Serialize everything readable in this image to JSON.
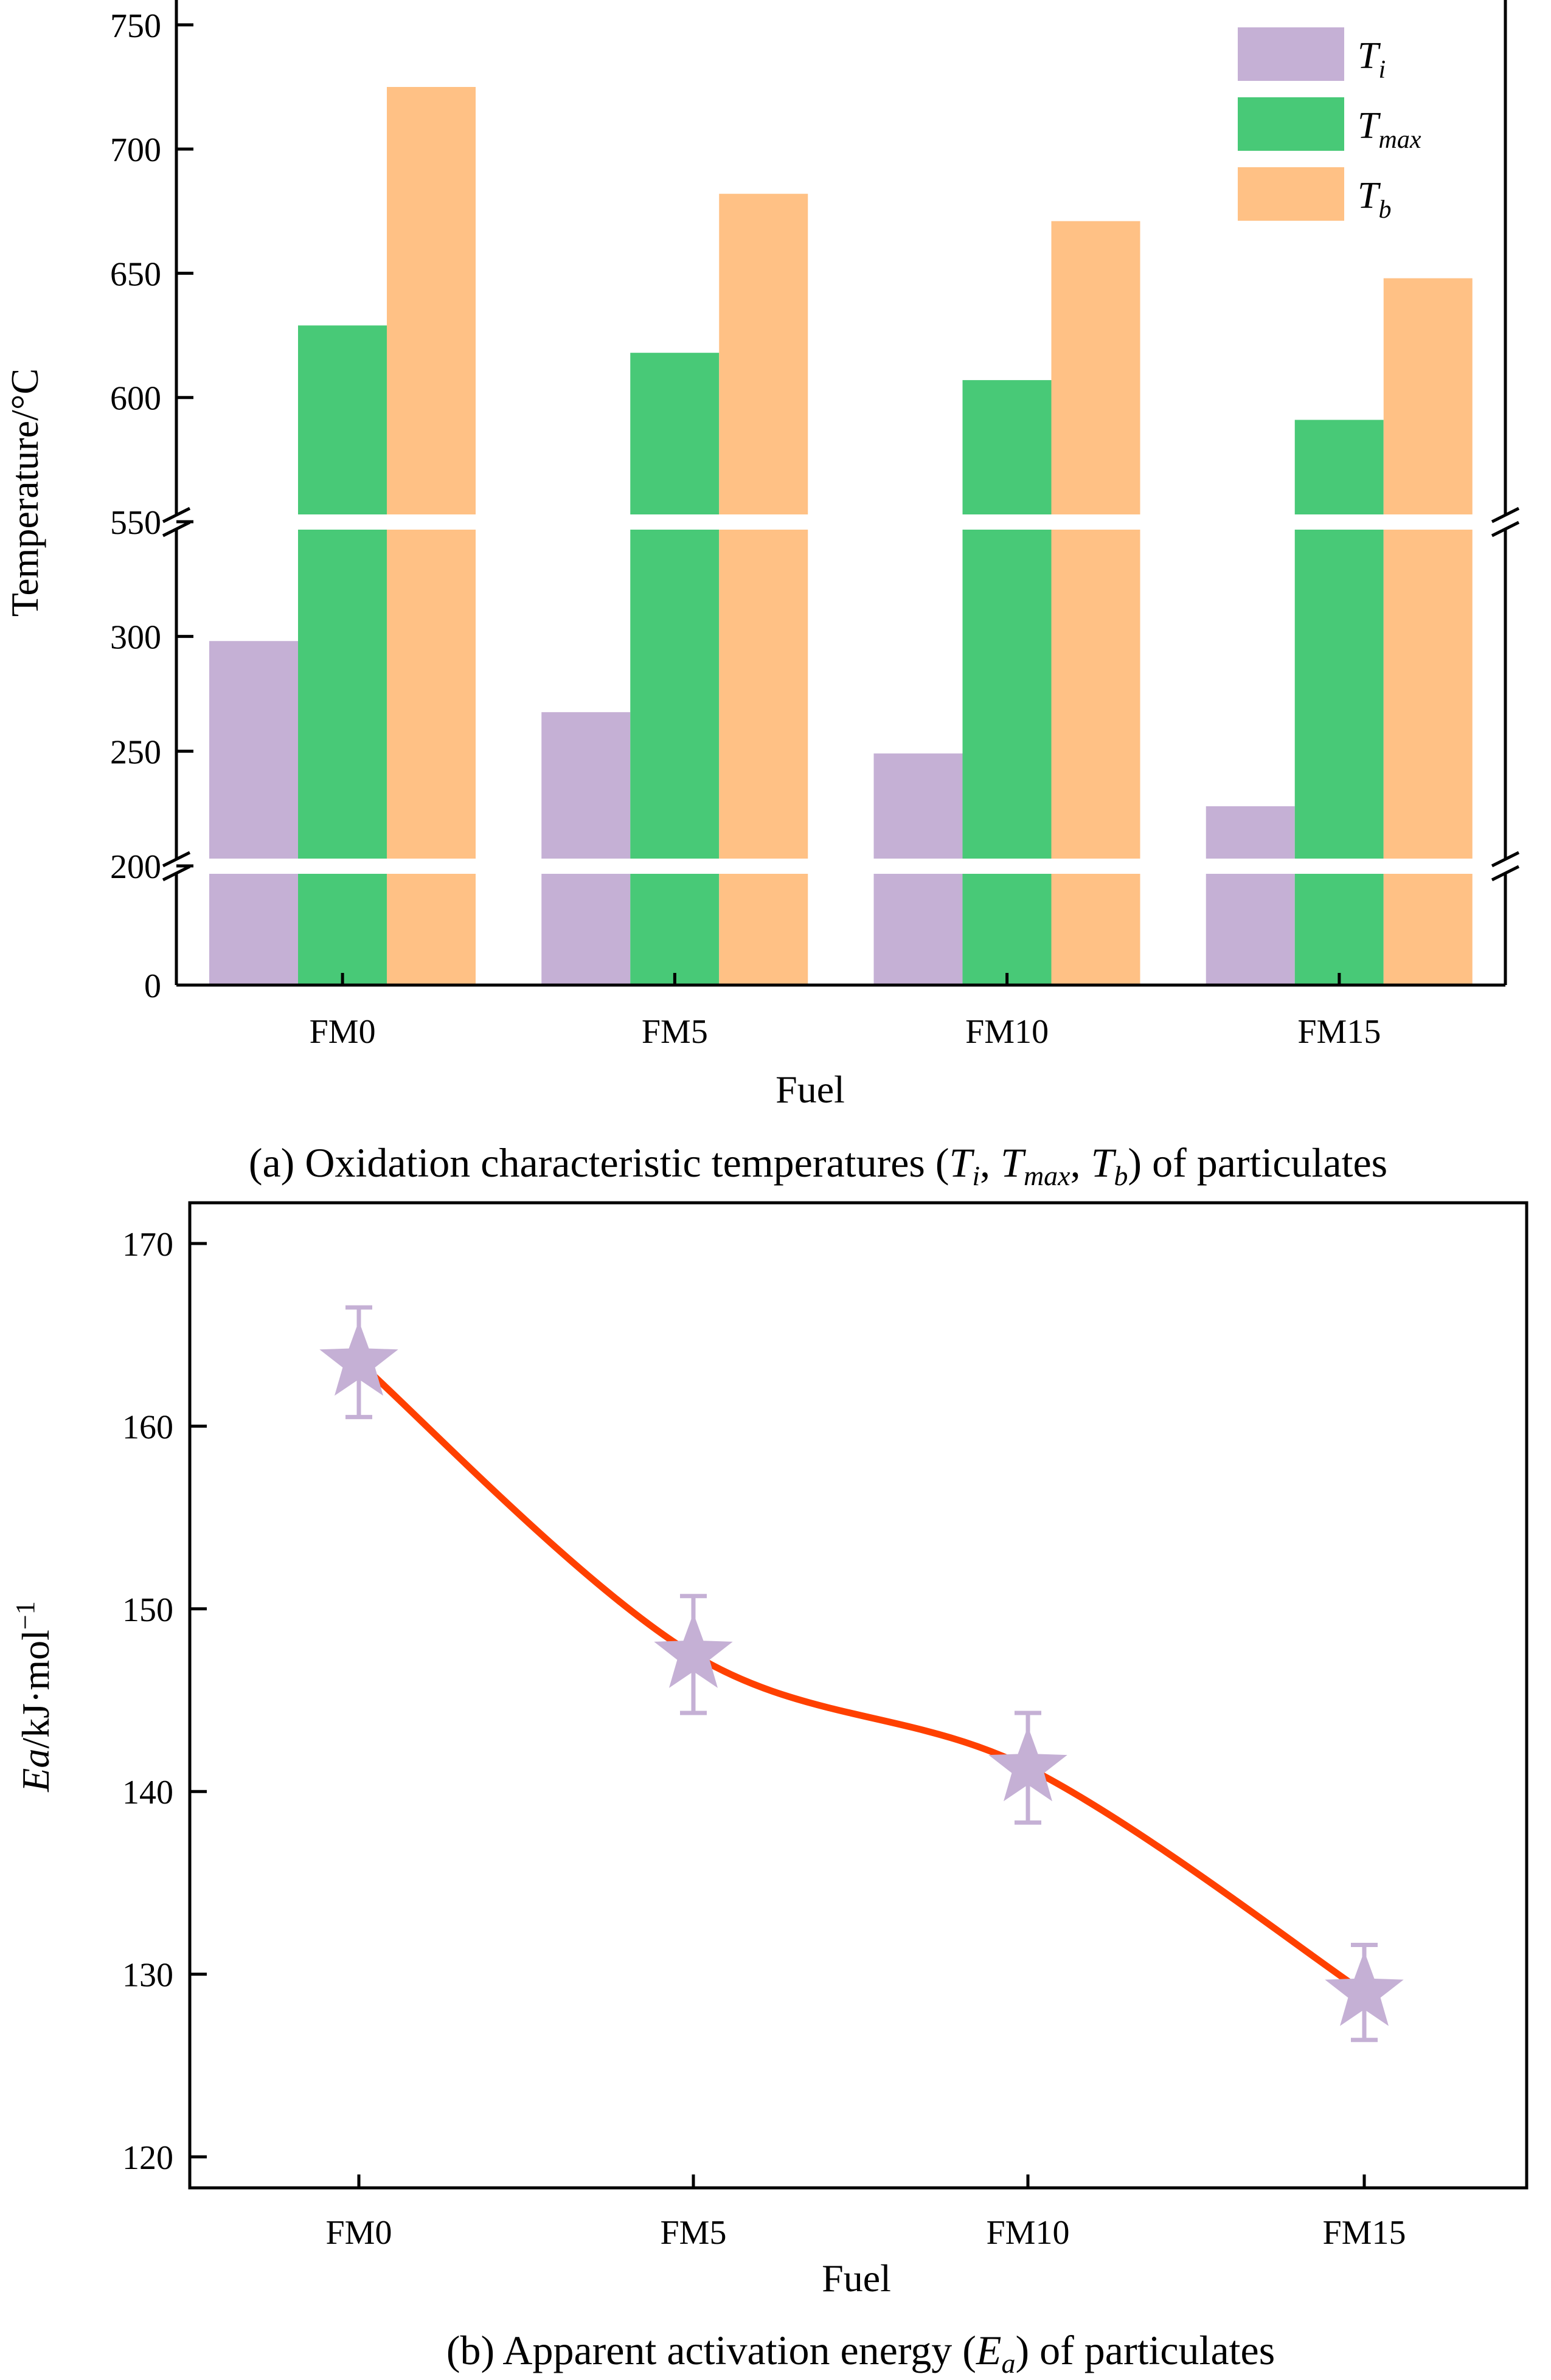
{
  "colors": {
    "Ti": "#c5b0d5",
    "Tmax": "#48c977",
    "Tb": "#ffc185",
    "line": "#ff4000",
    "marker": "#c5b0d5"
  },
  "chart_data": [
    {
      "type": "bar",
      "xlabel": "Fuel",
      "ylabel": "Temperature/°C",
      "categories": [
        "FM0",
        "FM5",
        "FM10",
        "FM15"
      ],
      "series": [
        {
          "name": "T",
          "sub": "i",
          "key": "Ti",
          "values": [
            298,
            267,
            249,
            226
          ]
        },
        {
          "name": "T",
          "sub": "max",
          "key": "Tmax",
          "values": [
            629,
            618,
            607,
            591
          ]
        },
        {
          "name": "T",
          "sub": "b",
          "key": "Tb",
          "values": [
            725,
            682,
            671,
            648
          ]
        }
      ],
      "axis_breaks": [
        [
          0,
          200
        ],
        [
          200,
          350
        ],
        [
          550,
          760
        ]
      ],
      "yticks": [
        "0",
        "200",
        "250",
        "300",
        "550",
        "600",
        "650",
        "700",
        "750"
      ],
      "legend_position": "top-right",
      "caption": {
        "prefix": "(a) Oxidation characteristic temperatures (",
        "v1": "T",
        "s1": "i",
        "sep1": ", ",
        "v2": "T",
        "s2": "max",
        "sep2": ", ",
        "v3": "T",
        "s3": "b",
        "suffix": ")  of particulates"
      }
    },
    {
      "type": "line",
      "xlabel": "Fuel",
      "ylabel": {
        "italic": "Ea",
        "rest": "/kJ·mol",
        "sup": "−1"
      },
      "categories": [
        "FM0",
        "FM5",
        "FM10",
        "FM15"
      ],
      "values": [
        163.5,
        147.5,
        141.3,
        129.0
      ],
      "error": [
        3.0,
        3.2,
        3.0,
        2.6
      ],
      "ylim": [
        119,
        171
      ],
      "yticks": [
        "120",
        "130",
        "140",
        "150",
        "160",
        "170"
      ],
      "marker": "star",
      "caption": {
        "prefix": "(b) Apparent activation energy (",
        "v": "E",
        "s": "a",
        "suffix": ")  of particulates"
      }
    }
  ]
}
